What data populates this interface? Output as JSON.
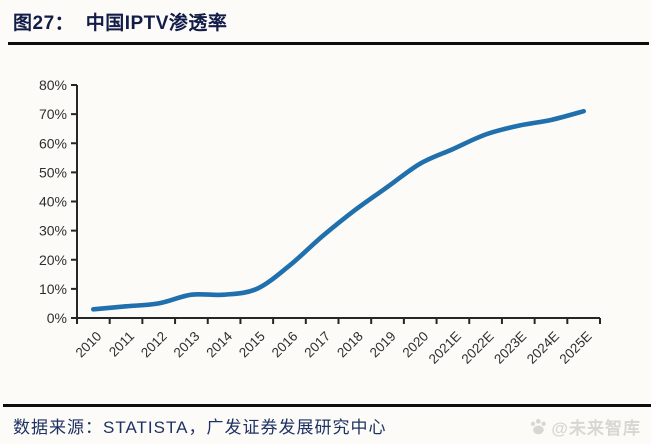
{
  "header": {
    "title": "图27：  中国IPTV渗透率"
  },
  "chart_data": {
    "type": "line",
    "title": "中国IPTV渗透率",
    "categories": [
      "2010",
      "2011",
      "2012",
      "2013",
      "2014",
      "2015",
      "2016",
      "2017",
      "2018",
      "2019",
      "2020",
      "2021E",
      "2022E",
      "2023E",
      "2024E",
      "2025E"
    ],
    "values": [
      3,
      4,
      5,
      8,
      8,
      10,
      18,
      28,
      37,
      45,
      53,
      58,
      63,
      66,
      68,
      71
    ],
    "unit": "%",
    "xlabel": "",
    "ylabel": "",
    "ylim": [
      0,
      80
    ],
    "ytick_step": 10,
    "ytick_suffix": "%",
    "grid": false,
    "legend": "none",
    "line_color": "#2070ae",
    "axis_color": "#262626",
    "tick_label_color": "#2e2e2e"
  },
  "footer": {
    "source_label": "数据来源：STATISTA，广发证券发展研究中心",
    "watermark_text": "@未来智库"
  }
}
